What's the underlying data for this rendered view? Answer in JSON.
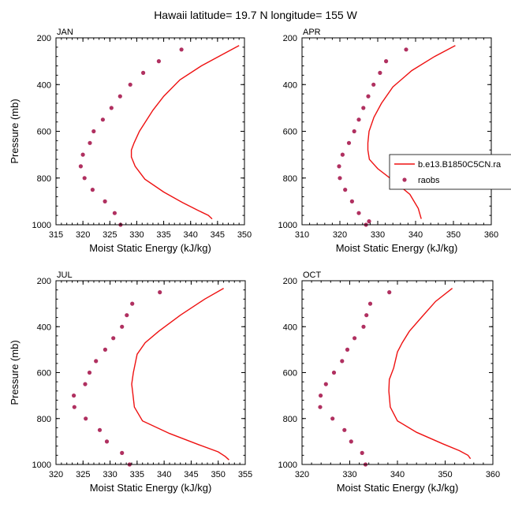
{
  "figure": {
    "title": "Hawaii  latitude= 19.7 N longitude= 155 W"
  },
  "legend": {
    "panel": "APR",
    "placement": "right, clipped at figure edge",
    "entries": [
      {
        "label": "b.e13.B1850C5CN.ra",
        "style": "line",
        "color": "#ee1111"
      },
      {
        "label": "raobs",
        "style": "marker",
        "color": "#b03060"
      }
    ]
  },
  "colors": {
    "model": "#ee1111",
    "obs": "#b03060"
  },
  "chart_data": [
    {
      "type": "line",
      "panel_label": "JAN",
      "xlabel": "Moist Static Energy (kJ/kg)",
      "ylabel": "Pressure (mb)",
      "xlim": [
        315,
        350
      ],
      "ylim": [
        1000,
        200
      ],
      "xticks": [
        315,
        320,
        325,
        330,
        335,
        340,
        345,
        350
      ],
      "yticks": [
        200,
        400,
        600,
        800,
        1000
      ],
      "series": [
        {
          "name": "b.e13.B1850C5CN.ra",
          "kind": "line",
          "x": [
            349.0,
            346.0,
            342.0,
            338.0,
            335.0,
            333.0,
            330.5,
            329.5,
            329.0,
            329.0,
            329.7,
            331.5,
            335.0,
            338.5,
            341.5,
            343.3,
            344.0
          ],
          "y": [
            233,
            270,
            320,
            380,
            450,
            510,
            600,
            650,
            680,
            710,
            750,
            805,
            860,
            905,
            940,
            960,
            975
          ]
        },
        {
          "name": "raobs",
          "kind": "scatter",
          "x": [
            338.3,
            334.1,
            331.2,
            328.8,
            326.9,
            325.3,
            323.7,
            322.0,
            321.3,
            320.0,
            319.6,
            320.3,
            321.8,
            324.1,
            325.9,
            327.0
          ],
          "y": [
            250,
            300,
            350,
            400,
            450,
            500,
            550,
            600,
            650,
            700,
            750,
            800,
            850,
            900,
            950,
            1000
          ]
        }
      ]
    },
    {
      "type": "line",
      "panel_label": "APR",
      "xlabel": "Moist Static Energy (kJ/kg)",
      "ylabel": "",
      "xlim": [
        310,
        360
      ],
      "ylim": [
        1000,
        200
      ],
      "xticks": [
        310,
        320,
        330,
        340,
        350,
        360
      ],
      "yticks": [
        200,
        400,
        600,
        800,
        1000
      ],
      "series": [
        {
          "name": "b.e13.B1850C5CN.ra",
          "kind": "line",
          "x": [
            350.5,
            345.0,
            339.0,
            334.0,
            331.0,
            329.0,
            327.7,
            327.4,
            327.4,
            327.8,
            330.0,
            334.0,
            338.5,
            340.7,
            341.5
          ],
          "y": [
            233,
            280,
            340,
            410,
            480,
            540,
            600,
            650,
            680,
            720,
            760,
            810,
            870,
            930,
            975
          ]
        },
        {
          "name": "raobs",
          "kind": "scatter",
          "x": [
            337.5,
            332.2,
            330.6,
            328.9,
            327.5,
            326.2,
            325.0,
            323.8,
            322.4,
            320.7,
            319.8,
            320.0,
            321.4,
            323.2,
            325.0,
            326.9,
            327.7
          ],
          "y": [
            250,
            300,
            350,
            400,
            450,
            500,
            550,
            600,
            650,
            700,
            750,
            800,
            850,
            900,
            950,
            1000,
            985
          ]
        }
      ]
    },
    {
      "type": "line",
      "panel_label": "JUL",
      "xlabel": "Moist Static Energy (kJ/kg)",
      "ylabel": "Pressure (mb)",
      "xlim": [
        320,
        355
      ],
      "ylim": [
        1000,
        200
      ],
      "xticks": [
        320,
        325,
        330,
        335,
        340,
        345,
        350,
        355
      ],
      "yticks": [
        200,
        400,
        600,
        800,
        1000
      ],
      "series": [
        {
          "name": "b.e13.B1850C5CN.ra",
          "kind": "line",
          "x": [
            351.0,
            347.5,
            343.0,
            339.0,
            336.5,
            335.0,
            334.3,
            334.0,
            334.2,
            334.5,
            336.0,
            341.0,
            346.5,
            350.0,
            351.3,
            352.0
          ],
          "y": [
            233,
            280,
            350,
            420,
            470,
            520,
            600,
            650,
            690,
            750,
            810,
            865,
            915,
            945,
            965,
            980
          ]
        },
        {
          "name": "raobs",
          "kind": "scatter",
          "x": [
            339.2,
            334.1,
            333.1,
            332.2,
            330.6,
            329.1,
            327.4,
            326.2,
            325.4,
            323.3,
            323.4,
            325.5,
            328.1,
            329.4,
            332.2,
            333.6
          ],
          "y": [
            250,
            300,
            350,
            400,
            450,
            500,
            550,
            600,
            650,
            700,
            750,
            800,
            850,
            900,
            950,
            1000
          ]
        }
      ]
    },
    {
      "type": "line",
      "panel_label": "OCT",
      "xlabel": "Moist Static Energy (kJ/kg)",
      "ylabel": "",
      "xlim": [
        320,
        360
      ],
      "ylim": [
        1000,
        200
      ],
      "xticks": [
        320,
        330,
        340,
        350,
        360
      ],
      "yticks": [
        200,
        400,
        600,
        800,
        1000
      ],
      "series": [
        {
          "name": "b.e13.B1850C5CN.ra",
          "kind": "line",
          "x": [
            351.5,
            348.0,
            345.0,
            342.5,
            341.0,
            340.0,
            339.2,
            338.3,
            338.2,
            338.5,
            340.0,
            344.0,
            349.5,
            353.0,
            354.8,
            355.3
          ],
          "y": [
            233,
            290,
            360,
            420,
            470,
            510,
            580,
            630,
            680,
            750,
            810,
            860,
            910,
            940,
            960,
            975
          ]
        },
        {
          "name": "raobs",
          "kind": "scatter",
          "x": [
            338.3,
            334.3,
            333.5,
            332.9,
            331.0,
            329.5,
            328.4,
            326.7,
            325.0,
            323.9,
            323.8,
            326.4,
            328.9,
            330.3,
            332.6,
            333.3
          ],
          "y": [
            250,
            300,
            350,
            400,
            450,
            500,
            550,
            600,
            650,
            700,
            750,
            800,
            850,
            900,
            950,
            1000
          ]
        }
      ]
    }
  ]
}
